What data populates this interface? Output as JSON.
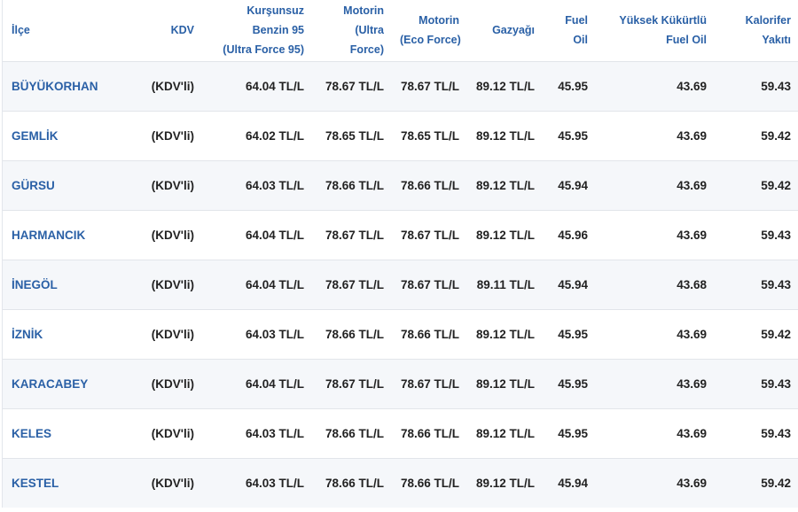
{
  "colors": {
    "header_text": "#2a60a6",
    "district_link": "#2a60a6",
    "cell_text": "#222222",
    "row_stripe": "#f5f7fa"
  },
  "headers": [
    {
      "lines": [
        "İlçe"
      ]
    },
    {
      "lines": [
        "KDV"
      ]
    },
    {
      "lines": [
        "Kurşunsuz",
        "Benzin 95",
        "(Ultra Force 95)"
      ]
    },
    {
      "lines": [
        "Motorin",
        "(Ultra",
        "Force)"
      ]
    },
    {
      "lines": [
        "Motorin",
        "(Eco Force)"
      ]
    },
    {
      "lines": [
        "Gazyağı"
      ]
    },
    {
      "lines": [
        "Fuel",
        "Oil"
      ]
    },
    {
      "lines": [
        "Yüksek Kükürtlü",
        "Fuel Oil"
      ]
    },
    {
      "lines": [
        "Kalorifer",
        "Yakıtı"
      ]
    }
  ],
  "rows": [
    {
      "district": "BÜYÜKORHAN",
      "kdv": "(KDV'li)",
      "benzin95": "64.04 TL/L",
      "motorin_ultra": "78.67 TL/L",
      "motorin_eco": "78.67 TL/L",
      "gazyagi": "89.12 TL/L",
      "fuel_oil": "45.95",
      "yuksek_kukurtlu": "43.69",
      "kalorifer": "59.43"
    },
    {
      "district": "GEMLİK",
      "kdv": "(KDV'li)",
      "benzin95": "64.02 TL/L",
      "motorin_ultra": "78.65 TL/L",
      "motorin_eco": "78.65 TL/L",
      "gazyagi": "89.12 TL/L",
      "fuel_oil": "45.95",
      "yuksek_kukurtlu": "43.69",
      "kalorifer": "59.42"
    },
    {
      "district": "GÜRSU",
      "kdv": "(KDV'li)",
      "benzin95": "64.03 TL/L",
      "motorin_ultra": "78.66 TL/L",
      "motorin_eco": "78.66 TL/L",
      "gazyagi": "89.12 TL/L",
      "fuel_oil": "45.94",
      "yuksek_kukurtlu": "43.69",
      "kalorifer": "59.42"
    },
    {
      "district": "HARMANCIK",
      "kdv": "(KDV'li)",
      "benzin95": "64.04 TL/L",
      "motorin_ultra": "78.67 TL/L",
      "motorin_eco": "78.67 TL/L",
      "gazyagi": "89.12 TL/L",
      "fuel_oil": "45.96",
      "yuksek_kukurtlu": "43.69",
      "kalorifer": "59.43"
    },
    {
      "district": "İNEGÖL",
      "kdv": "(KDV'li)",
      "benzin95": "64.04 TL/L",
      "motorin_ultra": "78.67 TL/L",
      "motorin_eco": "78.67 TL/L",
      "gazyagi": "89.11 TL/L",
      "fuel_oil": "45.94",
      "yuksek_kukurtlu": "43.68",
      "kalorifer": "59.43"
    },
    {
      "district": "İZNİK",
      "kdv": "(KDV'li)",
      "benzin95": "64.03 TL/L",
      "motorin_ultra": "78.66 TL/L",
      "motorin_eco": "78.66 TL/L",
      "gazyagi": "89.12 TL/L",
      "fuel_oil": "45.95",
      "yuksek_kukurtlu": "43.69",
      "kalorifer": "59.42"
    },
    {
      "district": "KARACABEY",
      "kdv": "(KDV'li)",
      "benzin95": "64.04 TL/L",
      "motorin_ultra": "78.67 TL/L",
      "motorin_eco": "78.67 TL/L",
      "gazyagi": "89.12 TL/L",
      "fuel_oil": "45.95",
      "yuksek_kukurtlu": "43.69",
      "kalorifer": "59.43"
    },
    {
      "district": "KELES",
      "kdv": "(KDV'li)",
      "benzin95": "64.03 TL/L",
      "motorin_ultra": "78.66 TL/L",
      "motorin_eco": "78.66 TL/L",
      "gazyagi": "89.12 TL/L",
      "fuel_oil": "45.95",
      "yuksek_kukurtlu": "43.69",
      "kalorifer": "59.43"
    },
    {
      "district": "KESTEL",
      "kdv": "(KDV'li)",
      "benzin95": "64.03 TL/L",
      "motorin_ultra": "78.66 TL/L",
      "motorin_eco": "78.66 TL/L",
      "gazyagi": "89.12 TL/L",
      "fuel_oil": "45.94",
      "yuksek_kukurtlu": "43.69",
      "kalorifer": "59.42"
    }
  ]
}
